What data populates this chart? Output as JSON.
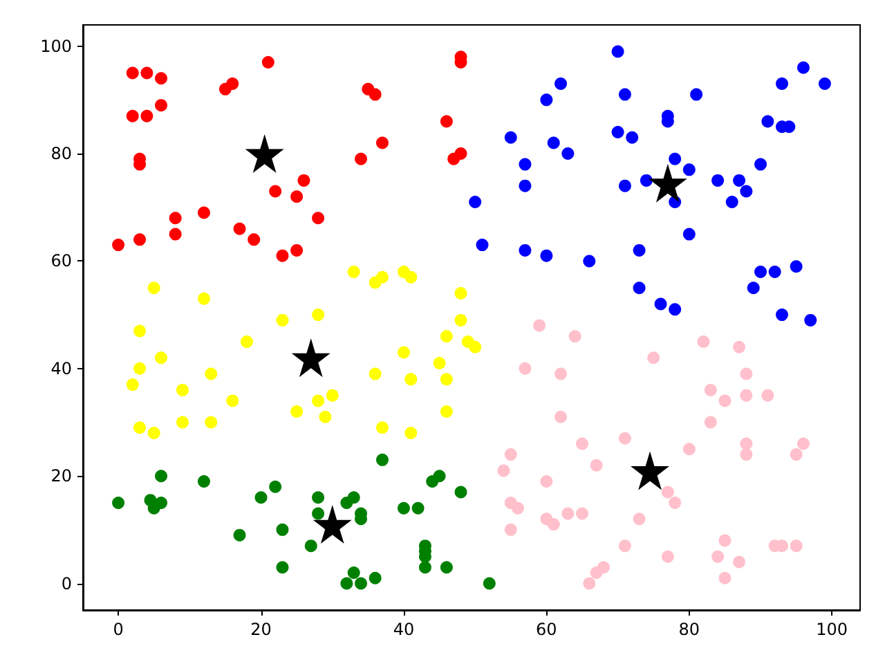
{
  "chart_data": {
    "type": "scatter",
    "marker": "circle",
    "grid": false,
    "xlim": [
      -4.95,
      103.95
    ],
    "ylim": [
      -4.95,
      103.95
    ],
    "xticks": [
      0,
      20,
      40,
      60,
      80,
      100
    ],
    "yticks": [
      0,
      20,
      40,
      60,
      80,
      100
    ],
    "series": [
      {
        "color": "#ff0000",
        "x": [
          0,
          2,
          4,
          6,
          2,
          4,
          6,
          3,
          3,
          3,
          8,
          8,
          12,
          15,
          16,
          21,
          17,
          19,
          22,
          23,
          25,
          25,
          26,
          28,
          34,
          35,
          36,
          37,
          46,
          47,
          48,
          48,
          48
        ],
        "values": [
          63,
          95,
          95,
          94,
          87,
          87,
          89,
          79,
          78,
          64,
          68,
          65,
          69,
          92,
          93,
          97,
          66,
          64,
          73,
          61,
          62,
          72,
          75,
          68,
          79,
          92,
          91,
          82,
          86,
          79,
          80,
          97,
          98
        ]
      },
      {
        "color": "#0000ff",
        "x": [
          50,
          51,
          55,
          57,
          57,
          57,
          60,
          60,
          61,
          62,
          63,
          66,
          70,
          70,
          71,
          71,
          72,
          73,
          73,
          74,
          76,
          77,
          77,
          78,
          78,
          78,
          80,
          80,
          81,
          84,
          86,
          87,
          88,
          89,
          90,
          90,
          91,
          92,
          93,
          93,
          93,
          94,
          95,
          96,
          97,
          99
        ],
        "values": [
          71,
          63,
          83,
          78,
          74,
          62,
          61,
          90,
          82,
          93,
          80,
          60,
          99,
          84,
          91,
          74,
          83,
          55,
          62,
          75,
          52,
          86,
          87,
          79,
          71,
          51,
          77,
          65,
          91,
          75,
          71,
          75,
          73,
          55,
          78,
          58,
          86,
          58,
          93,
          50,
          85,
          85,
          59,
          96,
          49,
          93
        ]
      },
      {
        "color": "#ffff00",
        "x": [
          3,
          3,
          2,
          3,
          5,
          5,
          6,
          9,
          9,
          12,
          13,
          13,
          16,
          18,
          23,
          25,
          28,
          28,
          29,
          30,
          33,
          36,
          37,
          36,
          37,
          40,
          41,
          40,
          41,
          41,
          45,
          46,
          46,
          46,
          48,
          48,
          49,
          50
        ],
        "values": [
          47,
          40,
          37,
          29,
          55,
          28,
          42,
          36,
          30,
          53,
          39,
          30,
          34,
          45,
          49,
          32,
          50,
          34,
          31,
          35,
          58,
          56,
          57,
          39,
          29,
          58,
          57,
          43,
          38,
          28,
          41,
          46,
          38,
          32,
          54,
          49,
          45,
          44
        ]
      },
      {
        "color": "#008000",
        "x": [
          0,
          4.5,
          5,
          6,
          6,
          12,
          17,
          20,
          22,
          23,
          23,
          27,
          28,
          28,
          32,
          33,
          34,
          34,
          32,
          33,
          34,
          36,
          37,
          40,
          42,
          43,
          43,
          43,
          43,
          44,
          45,
          46,
          48,
          52
        ],
        "values": [
          15,
          15.5,
          14,
          15,
          20,
          19,
          9,
          16,
          18,
          10,
          3,
          7,
          16,
          13,
          15,
          16,
          13,
          12,
          0,
          2,
          0,
          1,
          23,
          14,
          14,
          7,
          6,
          5,
          3,
          19,
          20,
          3,
          17,
          0
        ]
      },
      {
        "color": "#ffc0cb",
        "x": [
          54,
          55,
          55,
          55,
          56,
          57,
          59,
          60,
          60,
          61,
          62,
          62,
          63,
          64,
          65,
          65,
          66,
          67,
          67,
          68,
          71,
          71,
          73,
          75,
          77,
          77,
          78,
          80,
          82,
          83,
          83,
          84,
          85,
          85,
          85,
          87,
          87,
          88,
          88,
          88,
          88,
          91,
          92,
          93,
          95,
          95,
          96
        ],
        "values": [
          21,
          24,
          15,
          10,
          14,
          40,
          48,
          19,
          12,
          11,
          39,
          31,
          13,
          46,
          26,
          13,
          0,
          22,
          2,
          3,
          27,
          7,
          12,
          42,
          17,
          5,
          15,
          25,
          45,
          36,
          30,
          5,
          8,
          34,
          1,
          44,
          4,
          39,
          35,
          26,
          24,
          35,
          7,
          7,
          7,
          24,
          26
        ]
      },
      {
        "color": "#000000",
        "marker": "star",
        "x": [
          20.5,
          77,
          27,
          30,
          74.5
        ],
        "values": [
          80,
          74.5,
          42,
          11,
          21
        ]
      }
    ]
  }
}
